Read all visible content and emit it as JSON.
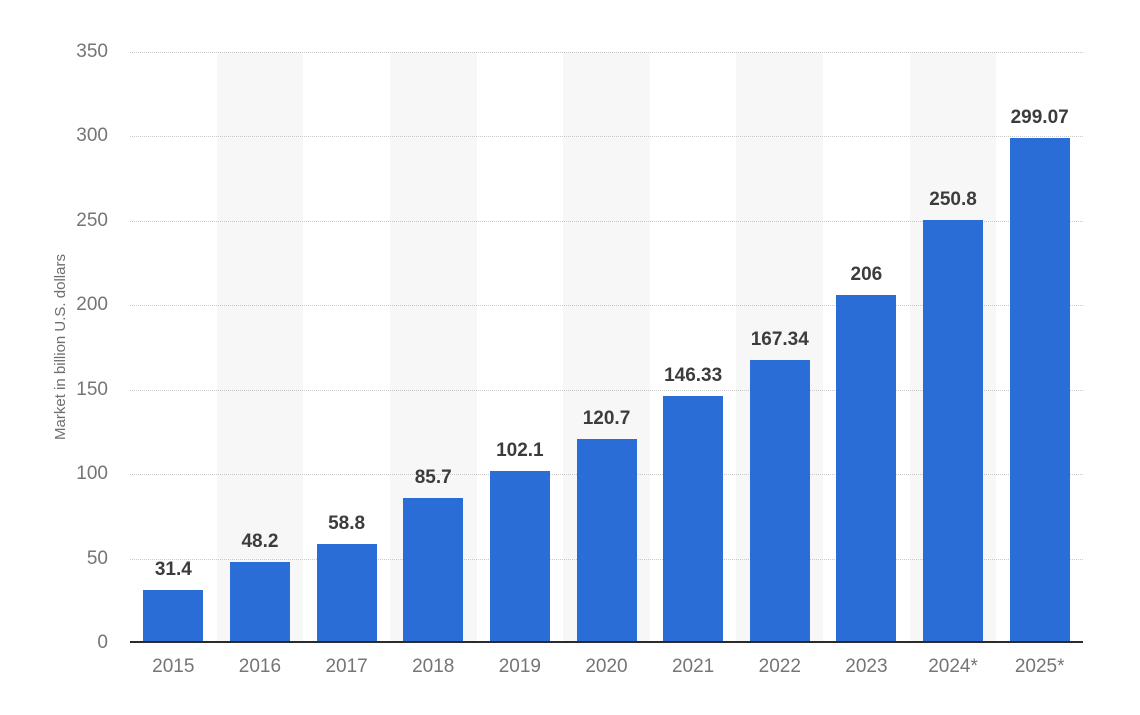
{
  "chart_data": {
    "type": "bar",
    "categories": [
      "2015",
      "2016",
      "2017",
      "2018",
      "2019",
      "2020",
      "2021",
      "2022",
      "2023",
      "2024*",
      "2025*"
    ],
    "values": [
      31.4,
      48.2,
      58.8,
      85.7,
      102.1,
      120.7,
      146.33,
      167.34,
      206,
      250.8,
      299.07
    ],
    "value_labels": [
      "31.4",
      "48.2",
      "58.8",
      "85.7",
      "102.1",
      "120.7",
      "146.33",
      "167.34",
      "206",
      "250.8",
      "299.07"
    ],
    "title": "",
    "xlabel": "",
    "ylabel": "Market in billion U.S. dollars",
    "ylim": [
      0,
      350
    ],
    "yticks": [
      0,
      50,
      100,
      150,
      200,
      250,
      300,
      350
    ],
    "grid": "horizontal-dotted",
    "legend": "none",
    "colors": {
      "bar": "#2b6dd6",
      "band": "#f7f7f7",
      "gridline": "#c9c9c9",
      "value_label": "#3c3c3c",
      "tick_label": "#757575",
      "axis_title": "#6e6e6e",
      "axis_line": "#2b2b2b",
      "background": "#ffffff"
    }
  }
}
